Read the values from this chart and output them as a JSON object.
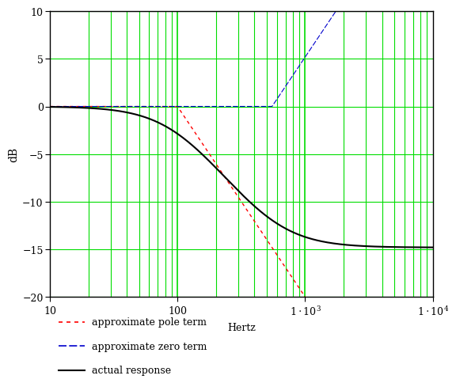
{
  "xmin": 10,
  "xmax": 10000,
  "ymin": -20,
  "ymax": 10,
  "xlabel": "Hertz",
  "ylabel": "dB",
  "pole_freq": 100,
  "zero_freq": 550,
  "grid_color": "#00dd00",
  "pole_color": "#ff0000",
  "zero_color": "#0000cc",
  "actual_color": "#000000",
  "bg_color": "#ffffff",
  "legend_labels": [
    "approximate pole term",
    "approximate zero term",
    "actual response"
  ],
  "yticks": [
    -20,
    -15,
    -10,
    -5,
    0,
    5,
    10
  ],
  "xtick_positions": [
    10,
    100,
    1000,
    10000
  ],
  "xtick_labels": [
    "10",
    "100",
    "$1 \\cdot 10^{3}$",
    "$1 \\cdot 10^{4}$"
  ]
}
